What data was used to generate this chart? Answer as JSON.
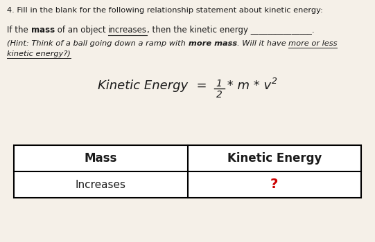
{
  "bg_color": "#f5f0e8",
  "title_text": "4. Fill in the blank for the following relationship statement about kinetic energy:",
  "text_color": "#1a1a1a",
  "question_color": "#cc0000",
  "table_border_color": "#000000",
  "table_headers": [
    "Mass",
    "Kinetic Energy"
  ],
  "table_row": [
    "Increases",
    "?"
  ],
  "figw": 5.41,
  "figh": 3.5,
  "dpi": 100
}
